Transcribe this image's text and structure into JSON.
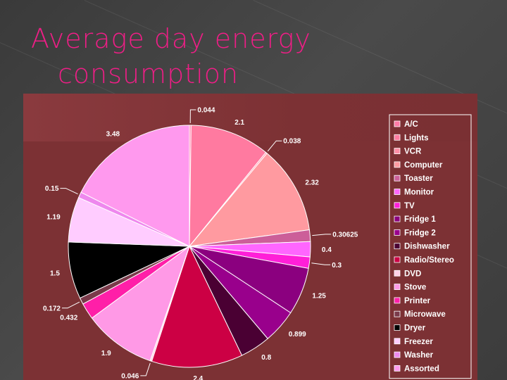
{
  "title": {
    "line1": "Average day energy",
    "line2": "consumption"
  },
  "colors": {
    "title": "#ee1e86",
    "chart_background": "#7c3134",
    "slide_background": "#404040"
  },
  "chart_data": {
    "type": "pie",
    "start": "12 o'clock",
    "direction": "clockwise",
    "legend_position": "right",
    "slices": [
      {
        "name": "A/C",
        "value": 0.044,
        "label": "0.044",
        "color": "#ff7aa6"
      },
      {
        "name": "Lights",
        "value": 2.1,
        "label": "2.1",
        "color": "#ff7aa0"
      },
      {
        "name": "VCR",
        "value": 0.038,
        "label": "0.038",
        "color": "#ff8ea6"
      },
      {
        "name": "Computer",
        "value": 2.32,
        "label": "2.32",
        "color": "#ff9aa0"
      },
      {
        "name": "Toaster",
        "value": 0.30625,
        "label": "0.30625",
        "color": "#cc5f99"
      },
      {
        "name": "Monitor",
        "value": 0.4,
        "label": "0.4",
        "color": "#ff66ff"
      },
      {
        "name": "TV",
        "value": 0.3,
        "label": "0.3",
        "color": "#ff1fd8"
      },
      {
        "name": "Fridge 1",
        "value": 1.25,
        "label": "1.25",
        "color": "#8b007f"
      },
      {
        "name": "Fridge 2",
        "value": 0.899,
        "label": "0.899",
        "color": "#99008c"
      },
      {
        "name": "Dishwasher",
        "value": 0.8,
        "label": "0.8",
        "color": "#4a0033"
      },
      {
        "name": "Radio/Stereo",
        "value": 2.4,
        "label": "2.4",
        "color": "#cc0044"
      },
      {
        "name": "DVD",
        "value": 0.046,
        "label": "0.046",
        "color": "#ffd0e6"
      },
      {
        "name": "Stove",
        "value": 1.9,
        "label": "1.9",
        "color": "#ff99e6"
      },
      {
        "name": "Printer",
        "value": 0.432,
        "label": "0.432",
        "color": "#ff1fa8"
      },
      {
        "name": "Microwave",
        "value": 0.172,
        "label": "0.172",
        "color": "#7a3a4a"
      },
      {
        "name": "Dryer",
        "value": 1.5,
        "label": "1.5",
        "color": "#000000"
      },
      {
        "name": "Freezer",
        "value": 1.19,
        "label": "1.19",
        "color": "#ffccff"
      },
      {
        "name": "Washer",
        "value": 0.15,
        "label": "0.15",
        "color": "#ee88ee"
      },
      {
        "name": "Assorted",
        "value": 3.48,
        "label": "3.48",
        "color": "#ff99ee"
      }
    ]
  }
}
